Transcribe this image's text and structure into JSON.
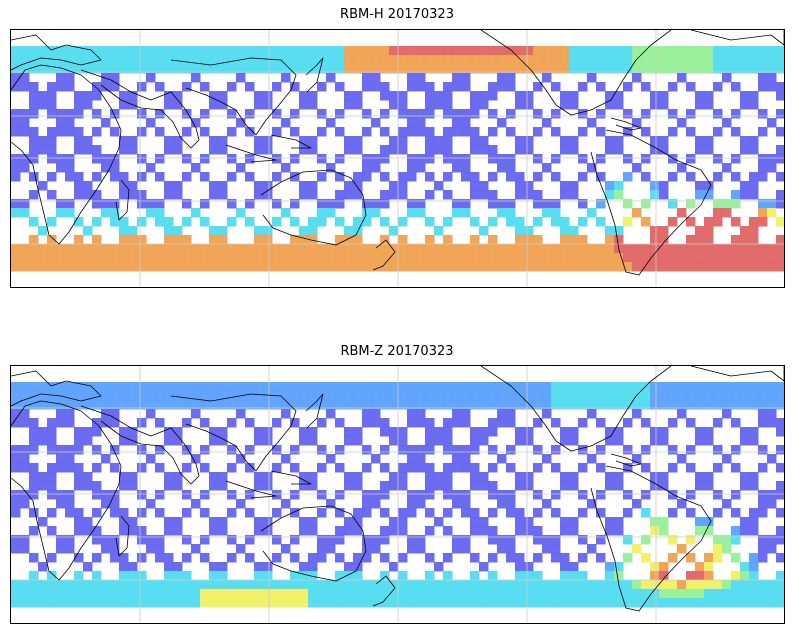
{
  "figure": {
    "panels": [
      {
        "id": "top",
        "title": "RBM-H 20170323",
        "hotspots": "top"
      },
      {
        "id": "bottom",
        "title": "RBM-Z 20170323",
        "hotspots": "bottom"
      }
    ],
    "colormap": "jet",
    "colors": {
      "track_low": "#6464f0",
      "track_mid": "#5aa0ff",
      "track_cyan": "#50dcf0",
      "track_green": "#96f096",
      "track_yellow": "#f0f064",
      "track_orange": "#f0a050",
      "track_high": "#e06464",
      "coastline": "#000000",
      "gridline": "#cccccc"
    }
  }
}
